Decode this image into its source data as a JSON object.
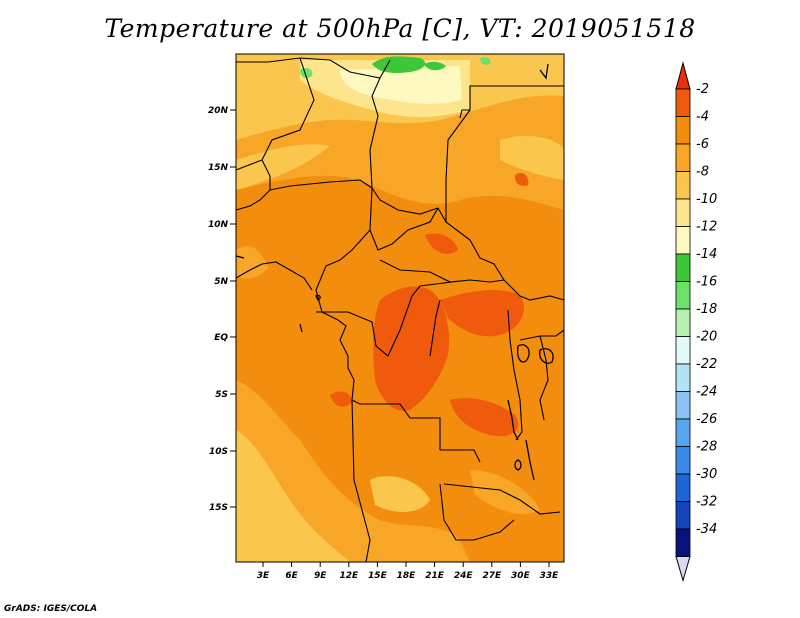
{
  "title": "Temperature at 500hPa [C], VT: 2019051518",
  "credit": "GrADS: IGES/COLA",
  "map": {
    "lat_labels": [
      "20N",
      "15N",
      "10N",
      "5N",
      "EQ",
      "5S",
      "10S",
      "15S"
    ],
    "lon_labels": [
      "3E",
      "6E",
      "9E",
      "12E",
      "15E",
      "18E",
      "21E",
      "24E",
      "27E",
      "30E",
      "33E"
    ]
  },
  "colorbar": {
    "labels": [
      "-2",
      "-4",
      "-6",
      "-8",
      "-10",
      "-12",
      "-14",
      "-16",
      "-18",
      "-20",
      "-22",
      "-24",
      "-26",
      "-28",
      "-30",
      "-32",
      "-34"
    ],
    "colors": [
      "#f05a0c",
      "#f38d0e",
      "#f7a628",
      "#fbc64e",
      "#fde58d",
      "#fdf9c0",
      "#3dc83a",
      "#6ee16b",
      "#b6f1b1",
      "#e3fbf8",
      "#b4e3f5",
      "#8dc3f2",
      "#5aa5ef",
      "#3b8ae8",
      "#1e65d8",
      "#1546b9",
      "#08137d"
    ],
    "top_arrow_color": "#e8300a",
    "bottom_arrow_color": "#dcd8f8"
  }
}
